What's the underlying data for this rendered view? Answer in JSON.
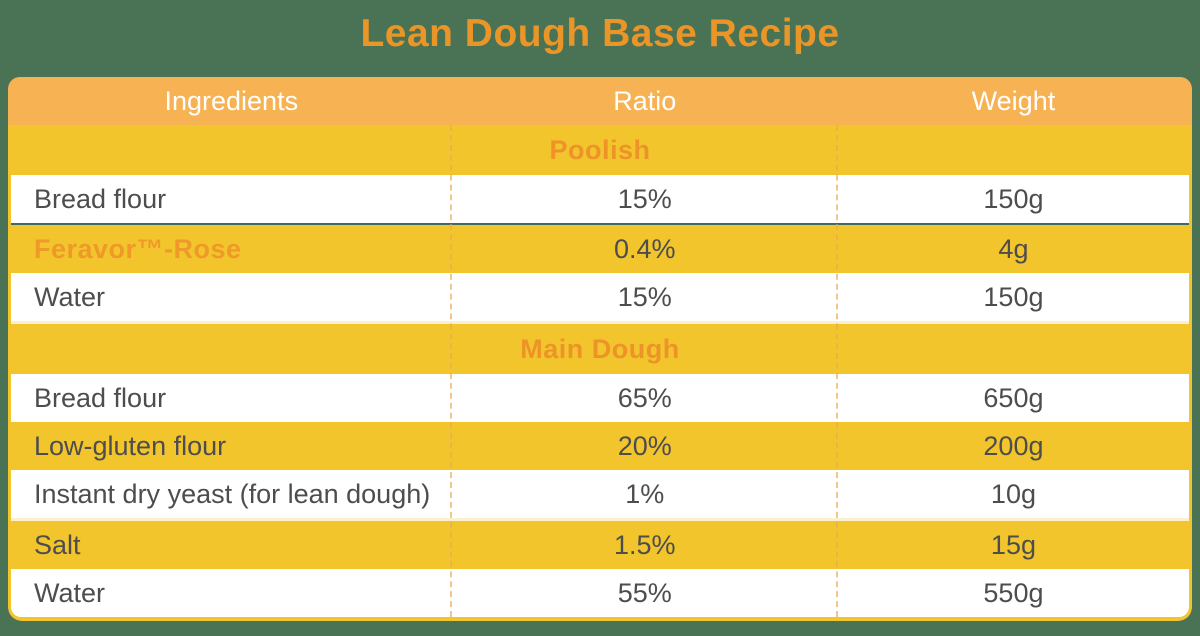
{
  "page": {
    "title": "Lean Dough Base Recipe"
  },
  "colors": {
    "background_green": "#4a7254",
    "table_yellow": "#f2c52d",
    "header_orange": "#f6b253",
    "accent_orange_text": "#ea9528",
    "body_text_gray": "#4d4d4d",
    "header_text_white": "#ffffff",
    "special_row_top_edge_green": "#3f6a5e",
    "section_seam_cream": "#faf0cd",
    "column_divider_dashed": "#e9ab52"
  },
  "table": {
    "columns": [
      {
        "label": "Ingredients"
      },
      {
        "label": "Ratio"
      },
      {
        "label": "Weight"
      }
    ],
    "sections": [
      {
        "title": "Poolish",
        "rows": [
          {
            "ingredient": "Bread flour",
            "ratio": "15%",
            "weight": "150g"
          },
          {
            "ingredient": "Feravor™-Rose",
            "ratio": "0.4%",
            "weight": "4g"
          },
          {
            "ingredient": "Water",
            "ratio": "15%",
            "weight": "150g"
          }
        ]
      },
      {
        "title": "Main Dough",
        "rows": [
          {
            "ingredient": "Bread flour",
            "ratio": "65%",
            "weight": "650g"
          },
          {
            "ingredient": "Low-gluten flour",
            "ratio": "20%",
            "weight": "200g"
          },
          {
            "ingredient": "Instant dry yeast (for lean dough)",
            "ratio": "1%",
            "weight": "10g"
          },
          {
            "ingredient": "Salt",
            "ratio": "1.5%",
            "weight": "15g"
          },
          {
            "ingredient": "Water",
            "ratio": "55%",
            "weight": "550g"
          }
        ]
      }
    ]
  }
}
